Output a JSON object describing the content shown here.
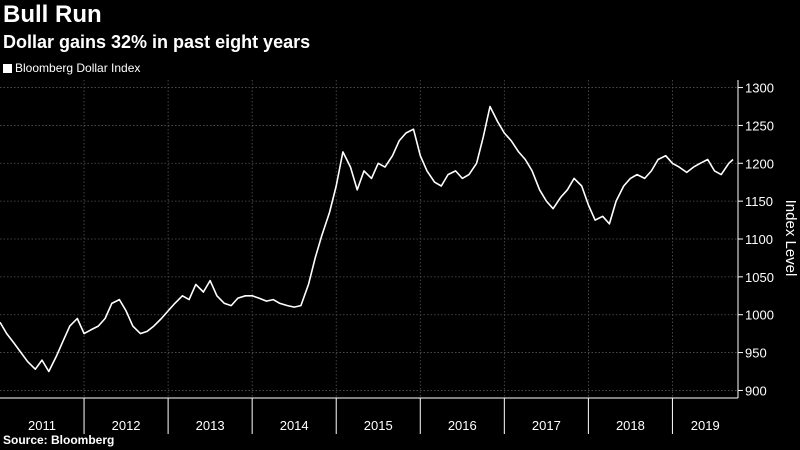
{
  "header": {
    "title": "Bull Run",
    "subtitle": "Dollar gains 32% in past eight years"
  },
  "legend": {
    "label": "Bloomberg Dollar Index"
  },
  "footer": {
    "source": "Source: Bloomberg"
  },
  "colors": {
    "background": "#000000",
    "line": "#ffffff",
    "grid": "#555555"
  },
  "chart_data": {
    "type": "line",
    "title": "Bull Run",
    "subtitle": "Dollar gains 32% in past eight years",
    "xlabel": "",
    "ylabel": "Index Level",
    "ylim": [
      890,
      1310
    ],
    "yticks": [
      900,
      950,
      1000,
      1050,
      1100,
      1150,
      1200,
      1250,
      1300
    ],
    "xlim": [
      2011.0,
      2019.78
    ],
    "xtick_labels": [
      "2011",
      "2012",
      "2013",
      "2014",
      "2015",
      "2016",
      "2017",
      "2018",
      "2019"
    ],
    "grid": true,
    "legend_position": "top-left",
    "series": [
      {
        "name": "Bloomberg Dollar Index",
        "x": [
          2011.0,
          2011.08,
          2011.17,
          2011.25,
          2011.33,
          2011.42,
          2011.5,
          2011.58,
          2011.67,
          2011.75,
          2011.83,
          2011.92,
          2012.0,
          2012.08,
          2012.17,
          2012.25,
          2012.33,
          2012.42,
          2012.5,
          2012.58,
          2012.67,
          2012.75,
          2012.83,
          2012.92,
          2013.0,
          2013.08,
          2013.17,
          2013.25,
          2013.33,
          2013.42,
          2013.5,
          2013.58,
          2013.67,
          2013.75,
          2013.83,
          2013.92,
          2014.0,
          2014.08,
          2014.17,
          2014.25,
          2014.33,
          2014.42,
          2014.5,
          2014.58,
          2014.67,
          2014.75,
          2014.83,
          2014.92,
          2015.0,
          2015.08,
          2015.17,
          2015.25,
          2015.33,
          2015.42,
          2015.5,
          2015.58,
          2015.67,
          2015.75,
          2015.83,
          2015.92,
          2016.0,
          2016.08,
          2016.17,
          2016.25,
          2016.33,
          2016.42,
          2016.5,
          2016.58,
          2016.67,
          2016.75,
          2016.83,
          2016.92,
          2017.0,
          2017.08,
          2017.17,
          2017.25,
          2017.33,
          2017.42,
          2017.5,
          2017.58,
          2017.67,
          2017.75,
          2017.83,
          2017.92,
          2018.0,
          2018.08,
          2018.17,
          2018.25,
          2018.33,
          2018.42,
          2018.5,
          2018.58,
          2018.67,
          2018.75,
          2018.83,
          2018.92,
          2019.0,
          2019.08,
          2019.17,
          2019.25,
          2019.33,
          2019.42,
          2019.5,
          2019.58,
          2019.67,
          2019.72
        ],
        "values": [
          990,
          975,
          962,
          950,
          938,
          928,
          940,
          925,
          945,
          965,
          985,
          995,
          975,
          980,
          985,
          995,
          1015,
          1020,
          1005,
          985,
          975,
          978,
          985,
          995,
          1005,
          1015,
          1025,
          1020,
          1040,
          1030,
          1045,
          1025,
          1015,
          1012,
          1022,
          1025,
          1025,
          1022,
          1018,
          1020,
          1015,
          1012,
          1010,
          1012,
          1040,
          1075,
          1105,
          1135,
          1170,
          1215,
          1195,
          1165,
          1190,
          1180,
          1200,
          1195,
          1210,
          1230,
          1240,
          1245,
          1210,
          1190,
          1175,
          1170,
          1185,
          1190,
          1180,
          1185,
          1200,
          1235,
          1275,
          1255,
          1240,
          1230,
          1215,
          1205,
          1190,
          1165,
          1150,
          1140,
          1155,
          1165,
          1180,
          1170,
          1145,
          1125,
          1130,
          1120,
          1150,
          1170,
          1180,
          1185,
          1180,
          1190,
          1205,
          1210,
          1200,
          1195,
          1188,
          1195,
          1200,
          1205,
          1190,
          1185,
          1200,
          1205
        ]
      }
    ]
  }
}
